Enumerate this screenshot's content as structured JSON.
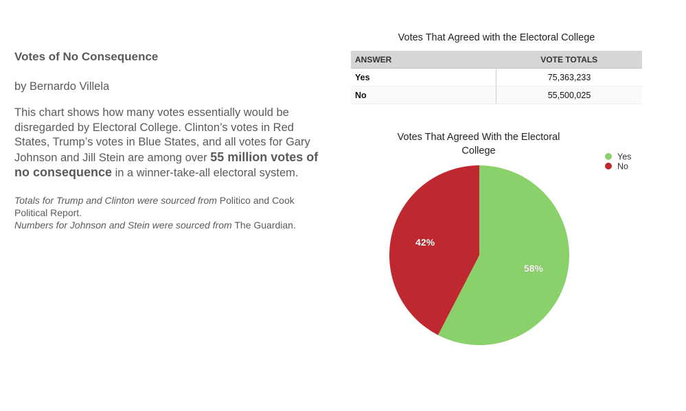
{
  "article": {
    "title": "Votes of No Consequence",
    "byline": "by Bernardo Villela",
    "desc_part1": "This chart shows how many votes essentially would be disregarded by Electoral College. Clinton’s votes in Red States, Trump’s votes in Blue States, and all votes for Gary Johnson and Jill Stein are among over ",
    "desc_bold": "55 million votes of no consequence",
    "desc_part2": " in a winner-take-all electoral system.",
    "src1_italic": "Totals for Trump and Clinton were sourced from",
    "src1_plain": " Politico and Cook Political Report.",
    "src2_italic": "Numbers for Johnson and Stein were sourced from",
    "src2_plain": " The Guardian."
  },
  "table": {
    "title": "Votes That Agreed with the Electoral College",
    "headers": [
      "ANSWER",
      "VOTE TOTALS"
    ],
    "rows": [
      {
        "answer": "Yes",
        "total": "75,363,233"
      },
      {
        "answer": "No",
        "total": "55,500,025"
      }
    ]
  },
  "chart_data": {
    "type": "pie",
    "title_line1": "Votes That Agreed With the Electoral",
    "title_line2": "College",
    "legend_position": "top-right",
    "slices": [
      {
        "label": "Yes",
        "value": 75363233,
        "percent_label": "58%",
        "color": "#8bd16b"
      },
      {
        "label": "No",
        "value": 55500025,
        "percent_label": "42%",
        "color": "#c0282f"
      }
    ]
  }
}
